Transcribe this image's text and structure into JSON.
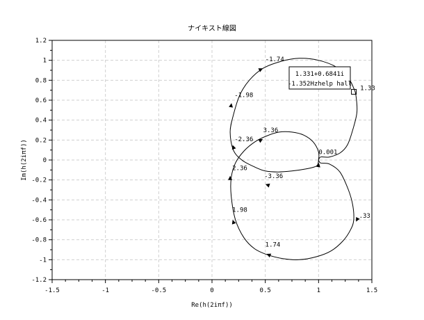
{
  "chart_data": {
    "type": "line",
    "title": "ナイキスト線図",
    "xlabel": "Re(h(2iπf))",
    "ylabel": "Im(h(2iπf))",
    "xlim": [
      -1.5,
      1.5
    ],
    "ylim": [
      -1.2,
      1.2
    ],
    "xticks": [
      "-1.5",
      "-1",
      "-0.5",
      "0",
      "0.5",
      "1",
      "1.5"
    ],
    "yticks": [
      "-1.2",
      "-1",
      "-0.8",
      "-0.6",
      "-0.4",
      "-0.2",
      "0",
      "0.2",
      "0.4",
      "0.6",
      "0.8",
      "1",
      "1.2"
    ],
    "xtick_values": [
      -1.5,
      -1,
      -0.5,
      0,
      0.5,
      1,
      1.5
    ],
    "ytick_values": [
      -1.2,
      -1,
      -0.8,
      -0.6,
      -0.4,
      -0.2,
      0,
      0.2,
      0.4,
      0.6,
      0.8,
      1,
      1.2
    ],
    "grid": true,
    "series": [
      {
        "points": [
          [
            1.0,
            0.0
          ],
          [
            1.02,
            0.03
          ],
          [
            1.1,
            0.03
          ],
          [
            1.2,
            0.07
          ],
          [
            1.27,
            0.15
          ],
          [
            1.32,
            0.3
          ],
          [
            1.36,
            0.48
          ],
          [
            1.35,
            0.65
          ],
          [
            1.33,
            0.72
          ],
          [
            1.28,
            0.82
          ],
          [
            1.17,
            0.93
          ],
          [
            1.0,
            1.0
          ],
          [
            0.82,
            1.02
          ],
          [
            0.65,
            0.99
          ],
          [
            0.48,
            0.92
          ],
          [
            0.35,
            0.8
          ],
          [
            0.26,
            0.65
          ],
          [
            0.2,
            0.45
          ],
          [
            0.17,
            0.28
          ],
          [
            0.2,
            0.1
          ],
          [
            0.28,
            0.0
          ],
          [
            0.4,
            -0.07
          ],
          [
            0.5,
            -0.11
          ],
          [
            0.62,
            -0.12
          ],
          [
            0.75,
            -0.11
          ],
          [
            0.88,
            -0.09
          ],
          [
            0.96,
            -0.07
          ],
          [
            0.99,
            -0.05
          ],
          [
            1.0,
            0.0
          ],
          [
            1.0,
            0.08
          ],
          [
            0.95,
            0.18
          ],
          [
            0.86,
            0.25
          ],
          [
            0.75,
            0.28
          ],
          [
            0.63,
            0.28
          ],
          [
            0.51,
            0.24
          ],
          [
            0.4,
            0.18
          ],
          [
            0.3,
            0.09
          ],
          [
            0.22,
            -0.03
          ],
          [
            0.18,
            -0.18
          ],
          [
            0.18,
            -0.36
          ],
          [
            0.22,
            -0.6
          ],
          [
            0.3,
            -0.78
          ],
          [
            0.4,
            -0.89
          ],
          [
            0.52,
            -0.95
          ],
          [
            0.67,
            -0.99
          ],
          [
            0.82,
            -1.0
          ],
          [
            0.98,
            -0.97
          ],
          [
            1.12,
            -0.91
          ],
          [
            1.23,
            -0.81
          ],
          [
            1.3,
            -0.7
          ],
          [
            1.33,
            -0.6
          ],
          [
            1.32,
            -0.45
          ],
          [
            1.28,
            -0.3
          ],
          [
            1.2,
            -0.12
          ],
          [
            1.1,
            -0.04
          ],
          [
            1.02,
            -0.03
          ],
          [
            1.0,
            0.0
          ]
        ]
      }
    ],
    "arrows": [
      {
        "x": 0.46,
        "y": 0.91,
        "dx": 0.08,
        "dy": 0.04
      },
      {
        "x": 0.18,
        "y": 0.55,
        "dx": 0.01,
        "dy": 0.06
      },
      {
        "x": 0.2,
        "y": 0.13,
        "dx": -0.02,
        "dy": 0.06
      },
      {
        "x": 0.46,
        "y": 0.2,
        "dx": 0.07,
        "dy": 0.04
      },
      {
        "x": 0.52,
        "y": -0.25,
        "dx": -0.06,
        "dy": 0.02
      },
      {
        "x": 1.0,
        "y": -0.05,
        "dx": 0.01,
        "dy": 0.06
      },
      {
        "x": 1.36,
        "y": -0.6,
        "dx": -0.03,
        "dy": -0.06
      },
      {
        "x": 0.53,
        "y": -0.95,
        "dx": -0.07,
        "dy": 0.03
      },
      {
        "x": 0.2,
        "y": -0.62,
        "dx": -0.02,
        "dy": 0.06
      },
      {
        "x": 0.17,
        "y": -0.18,
        "dx": 0.0,
        "dy": 0.06
      }
    ],
    "annotations": [
      {
        "text": "-1.74",
        "x": 0.5,
        "y": 0.99
      },
      {
        "text": "-1.98",
        "x": 0.21,
        "y": 0.63
      },
      {
        "text": "3.36",
        "x": 0.48,
        "y": 0.28
      },
      {
        "text": "-2.36",
        "x": 0.21,
        "y": 0.19
      },
      {
        "text": "0.001",
        "x": 1.0,
        "y": 0.06
      },
      {
        "text": "2.36",
        "x": 0.19,
        "y": -0.1
      },
      {
        "text": "-3.36",
        "x": 0.49,
        "y": -0.18
      },
      {
        "text": "1.98",
        "x": 0.19,
        "y": -0.52
      },
      {
        "text": "1.74",
        "x": 0.5,
        "y": -0.87
      },
      {
        "text": "1.33",
        "x": 1.39,
        "y": 0.7
      },
      {
        "text": ".33",
        "x": 1.38,
        "y": -0.58
      }
    ],
    "datatip": {
      "lines": [
        "1.331+0.6841i",
        "-1.352Hzhelp hall"
      ],
      "point": {
        "x": 1.331,
        "y": 0.684
      }
    }
  }
}
